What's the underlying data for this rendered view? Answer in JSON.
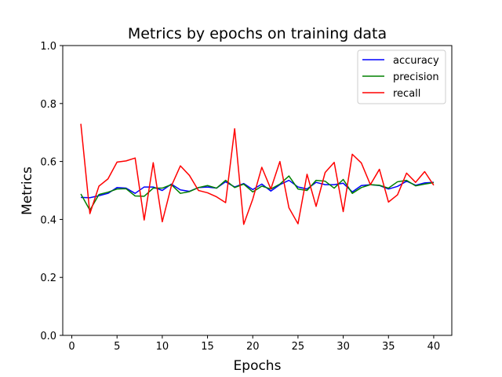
{
  "chart_data": {
    "type": "line",
    "title": "Metrics by  epochs on training data",
    "xlabel": "Epochs",
    "ylabel": "Metrics",
    "xlim": [
      -1,
      42
    ],
    "ylim": [
      0.0,
      1.0
    ],
    "xticks": [
      0,
      5,
      10,
      15,
      20,
      25,
      30,
      35,
      40
    ],
    "xtick_labels": [
      "0",
      "5",
      "10",
      "15",
      "20",
      "25",
      "30",
      "35",
      "40"
    ],
    "yticks": [
      0.0,
      0.2,
      0.4,
      0.6,
      0.8,
      1.0
    ],
    "ytick_labels": [
      "0.0",
      "0.2",
      "0.4",
      "0.6",
      "0.8",
      "1.0"
    ],
    "grid": false,
    "legend_position": "top-right",
    "x": [
      1,
      2,
      3,
      4,
      5,
      6,
      7,
      8,
      9,
      10,
      11,
      12,
      13,
      14,
      15,
      16,
      17,
      18,
      19,
      20,
      21,
      22,
      23,
      24,
      25,
      26,
      27,
      28,
      29,
      30,
      31,
      32,
      33,
      34,
      35,
      36,
      37,
      38,
      39,
      40
    ],
    "series": [
      {
        "name": "accuracy",
        "color": "#0000ff",
        "values": [
          0.476,
          0.475,
          0.482,
          0.49,
          0.51,
          0.508,
          0.49,
          0.512,
          0.512,
          0.5,
          0.522,
          0.502,
          0.497,
          0.51,
          0.512,
          0.508,
          0.53,
          0.512,
          0.524,
          0.503,
          0.522,
          0.498,
          0.52,
          0.535,
          0.512,
          0.505,
          0.528,
          0.52,
          0.52,
          0.525,
          0.495,
          0.517,
          0.52,
          0.517,
          0.505,
          0.514,
          0.532,
          0.518,
          0.526,
          0.528
        ]
      },
      {
        "name": "precision",
        "color": "#008000",
        "values": [
          0.488,
          0.432,
          0.486,
          0.494,
          0.505,
          0.506,
          0.481,
          0.48,
          0.508,
          0.508,
          0.52,
          0.49,
          0.496,
          0.51,
          0.517,
          0.508,
          0.535,
          0.51,
          0.522,
          0.495,
          0.515,
          0.505,
          0.522,
          0.55,
          0.505,
          0.5,
          0.535,
          0.532,
          0.508,
          0.538,
          0.49,
          0.51,
          0.52,
          0.518,
          0.508,
          0.53,
          0.535,
          0.516,
          0.522,
          0.527
        ]
      },
      {
        "name": "recall",
        "color": "#ff0000",
        "values": [
          0.73,
          0.42,
          0.515,
          0.54,
          0.598,
          0.602,
          0.612,
          0.398,
          0.596,
          0.392,
          0.515,
          0.585,
          0.552,
          0.5,
          0.492,
          0.478,
          0.458,
          0.713,
          0.383,
          0.47,
          0.58,
          0.505,
          0.6,
          0.44,
          0.385,
          0.556,
          0.445,
          0.562,
          0.597,
          0.427,
          0.625,
          0.595,
          0.52,
          0.573,
          0.46,
          0.485,
          0.56,
          0.528,
          0.565,
          0.518
        ]
      }
    ]
  }
}
